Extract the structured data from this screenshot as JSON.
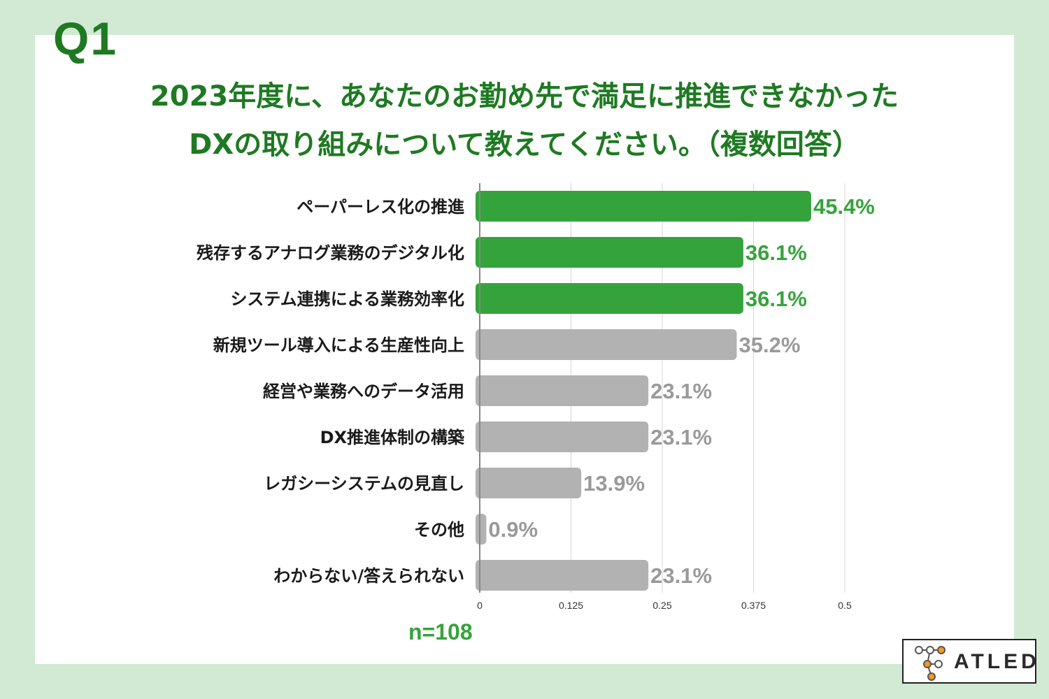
{
  "question_label": "Q1",
  "title_lines": [
    "2023年度に、あなたのお勤め先で満足に推進できなかった",
    "DXの取り組みについて教えてください。（複数回答）"
  ],
  "sample_size": "n=108",
  "logo_text": "ATLED",
  "colors": {
    "highlight": "#35a33c",
    "muted": "#b2b2b2",
    "highlight_label": "#35a33c",
    "muted_label": "#9a9a9a",
    "title": "#1e7a22"
  },
  "chart_data": {
    "type": "bar",
    "orientation": "horizontal",
    "categories": [
      "ペーパーレス化の推進",
      "残存するアナログ業務のデジタル化",
      "システム連携による業務効率化",
      "新規ツール導入による生産性向上",
      "経営や業務へのデータ活用",
      "DX推進体制の構築",
      "レガシーシステムの見直し",
      "その他",
      "わからない/答えられない"
    ],
    "values": [
      0.454,
      0.361,
      0.361,
      0.352,
      0.231,
      0.231,
      0.139,
      0.009,
      0.231
    ],
    "value_labels": [
      "45.4%",
      "36.1%",
      "36.1%",
      "35.2%",
      "23.1%",
      "23.1%",
      "13.9%",
      "0.9%",
      "23.1%"
    ],
    "highlighted": [
      true,
      true,
      true,
      false,
      false,
      false,
      false,
      false,
      false
    ],
    "xlim": [
      0,
      0.5
    ],
    "xticks": [
      0,
      0.125,
      0.25,
      0.375,
      0.5
    ],
    "xtick_labels": [
      "0",
      "0.125",
      "0.25",
      "0.375",
      "0.5"
    ],
    "grid": true
  }
}
